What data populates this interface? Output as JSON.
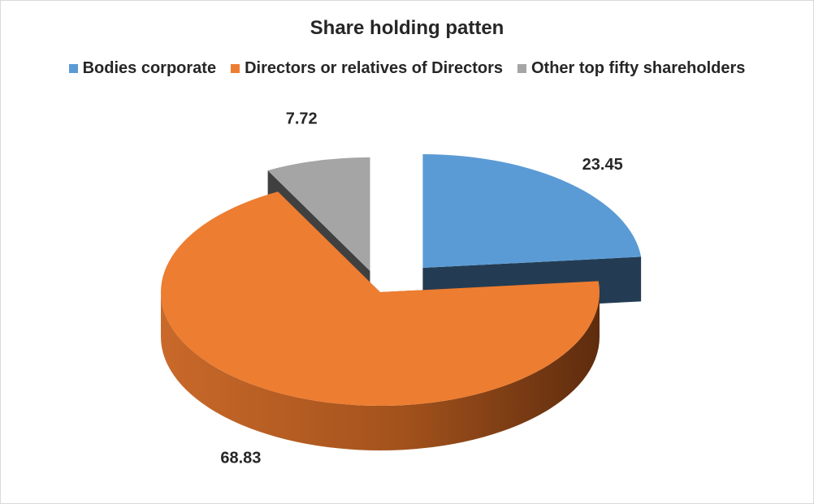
{
  "chart_data": {
    "type": "pie",
    "title": "Share holding patten",
    "categories": [
      "Bodies corporate",
      "Directors or relatives of Directors",
      "Other top fifty shareholders"
    ],
    "values": [
      23.45,
      68.83,
      7.72
    ],
    "data_labels": [
      "23.45",
      "68.83",
      "7.72"
    ],
    "colors": [
      "#5b9bd5",
      "#ed7d31",
      "#a5a5a5"
    ],
    "side_colors": [
      "#243c53",
      "#8a3f12",
      "#404040"
    ],
    "legend_position": "top",
    "style": "3d-exploded"
  }
}
